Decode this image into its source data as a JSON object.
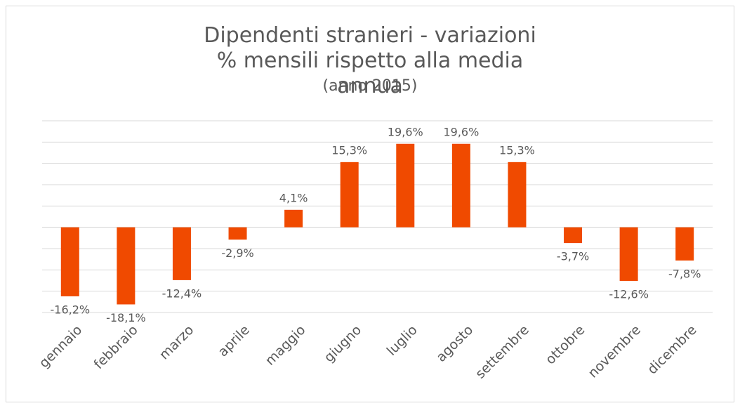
{
  "chart_data": {
    "type": "bar",
    "title": "Dipendenti stranieri - variazioni % mensili rispetto alla media annua",
    "subtitle": "(anno 2015)",
    "categories": [
      "gennaio",
      "febbraio",
      "marzo",
      "aprile",
      "maggio",
      "giugno",
      "luglio",
      "agosto",
      "settembre",
      "ottobre",
      "novembre",
      "dicembre"
    ],
    "values": [
      -16.2,
      -18.1,
      -12.4,
      -2.9,
      4.1,
      15.3,
      19.6,
      19.6,
      15.3,
      -3.7,
      -12.6,
      -7.8
    ],
    "value_labels": [
      "-16,2%",
      "-18,1%",
      "-12,4%",
      "-2,9%",
      "4,1%",
      "15,3%",
      "19,6%",
      "19,6%",
      "15,3%",
      "-3,7%",
      "-12,6%",
      "-7,8%"
    ],
    "color": "#f04a00",
    "ylim": [
      -20,
      25
    ],
    "yticks": [
      -20,
      -15,
      -10,
      -5,
      0,
      5,
      10,
      15,
      20,
      25
    ],
    "grid": true
  }
}
